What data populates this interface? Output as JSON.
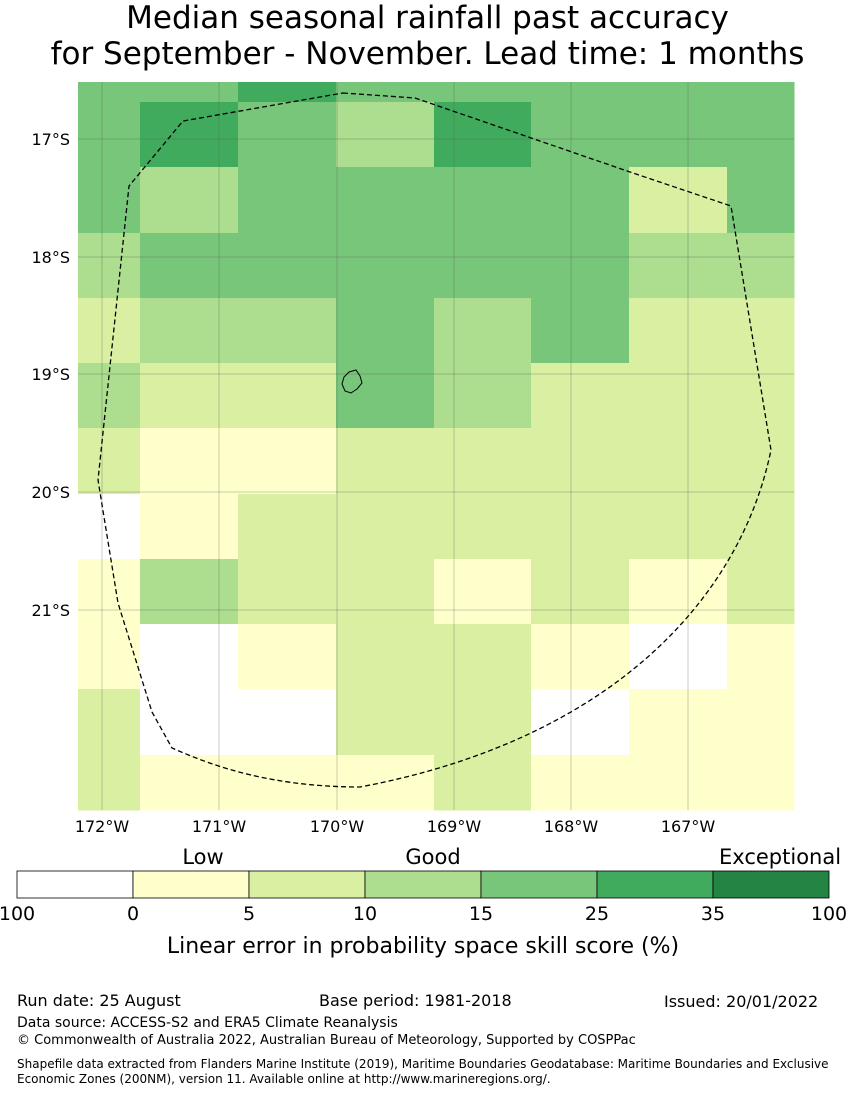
{
  "title_line1": "Median seasonal rainfall past accuracy",
  "title_line2": "for September - November. Lead time: 1 months",
  "map": {
    "lat_labels": [
      "17°S",
      "18°S",
      "19°S",
      "20°S",
      "21°S"
    ],
    "lon_labels": [
      "172°W",
      "171°W",
      "170°W",
      "169°W",
      "168°W",
      "167°W"
    ],
    "grid_categories_rows_top_to_bottom": [
      [
        4,
        4,
        5,
        4,
        4,
        4,
        4,
        4
      ],
      [
        4,
        5,
        4,
        3,
        5,
        4,
        4,
        4
      ],
      [
        4,
        3,
        4,
        4,
        4,
        4,
        2,
        4
      ],
      [
        3,
        4,
        4,
        4,
        4,
        4,
        3,
        3
      ],
      [
        2,
        3,
        3,
        4,
        3,
        4,
        2,
        2
      ],
      [
        3,
        2,
        2,
        4,
        3,
        2,
        2,
        2
      ],
      [
        2,
        1,
        1,
        2,
        2,
        2,
        2,
        2
      ],
      [
        0,
        1,
        2,
        2,
        2,
        2,
        2,
        2
      ],
      [
        1,
        3,
        2,
        2,
        1,
        2,
        1,
        2
      ],
      [
        1,
        0,
        1,
        2,
        2,
        1,
        0,
        1
      ],
      [
        2,
        0,
        0,
        2,
        2,
        0,
        1,
        1
      ],
      [
        2,
        1,
        1,
        1,
        2,
        1,
        1,
        1
      ]
    ],
    "boundary": "dashed EEZ outline",
    "island": "Niue"
  },
  "legend": {
    "category_labels": [
      "Low",
      "Good",
      "Exceptional"
    ],
    "tick_labels": [
      "100",
      "0",
      "5",
      "10",
      "15",
      "25",
      "35",
      "100"
    ],
    "colors": [
      "#ffffff",
      "#ffffcc",
      "#d9f0a3",
      "#addd8e",
      "#78c679",
      "#41ab5d",
      "#238443"
    ],
    "axis_label": "Linear error in probability space skill score (%)"
  },
  "footer": {
    "run_date": "Run date: 25 August",
    "base_period": "Base period: 1981-2018",
    "issued": "Issued: 20/01/2022",
    "data_source": "Data source: ACCESS-S2 and ERA5 Climate Reanalysis",
    "copyright": "© Commonwealth of Australia 2022, Australian Bureau of Meteorology, Supported by COSPPac",
    "shapefile": "Shapefile data extracted from Flanders Marine Institute (2019), Maritime Boundaries Geodatabase: Maritime Boundaries and Exclusive Economic Zones (200NM), version 11. Available online at http://www.marineregions.org/."
  }
}
